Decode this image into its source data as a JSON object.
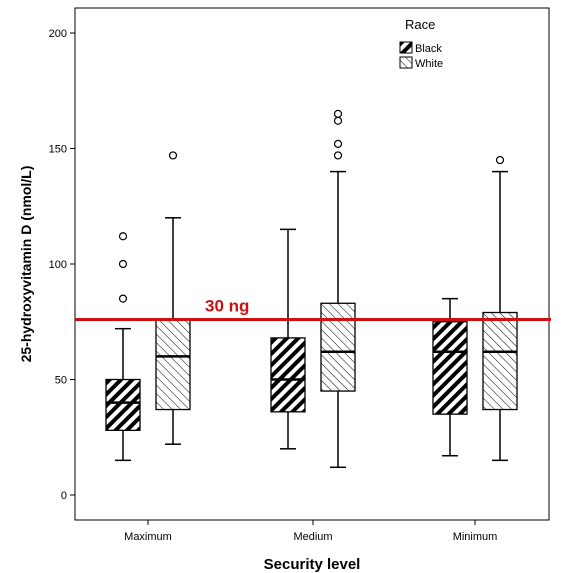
{
  "chart_data": {
    "type": "boxplot",
    "xlabel": "Security level",
    "ylabel": "25-hydroxyvitamin D (nmol/L)",
    "ylim": [
      -10,
      210
    ],
    "yticks": [
      0,
      50,
      100,
      150,
      200
    ],
    "categories": [
      "Maximum",
      "Medium",
      "Minimum"
    ],
    "legend": {
      "title": "Race",
      "position": "top-right",
      "entries": [
        {
          "label": "Black",
          "pattern": "dense-diagonal"
        },
        {
          "label": "White",
          "pattern": "light-diagonal"
        }
      ]
    },
    "series": [
      {
        "name": "Black",
        "pattern": "dense-diagonal",
        "boxes": [
          {
            "min": 15,
            "q1": 28,
            "median": 40,
            "q3": 50,
            "max": 72,
            "outliers": [
              85,
              100,
              112
            ]
          },
          {
            "min": 20,
            "q1": 36,
            "median": 50,
            "q3": 68,
            "max": 115,
            "outliers": []
          },
          {
            "min": 17,
            "q1": 35,
            "median": 62,
            "q3": 75,
            "max": 85,
            "outliers": []
          }
        ]
      },
      {
        "name": "White",
        "pattern": "light-diagonal",
        "boxes": [
          {
            "min": 22,
            "q1": 37,
            "median": 60,
            "q3": 76,
            "max": 120,
            "outliers": [
              147
            ]
          },
          {
            "min": 12,
            "q1": 45,
            "median": 62,
            "q3": 83,
            "max": 140,
            "outliers": [
              147,
              152,
              162,
              165
            ]
          },
          {
            "min": 15,
            "q1": 37,
            "median": 62,
            "q3": 79,
            "max": 140,
            "outliers": [
              145
            ]
          }
        ]
      }
    ],
    "threshold": {
      "value": 76,
      "label": "30 ng",
      "color": "#d01010"
    }
  }
}
